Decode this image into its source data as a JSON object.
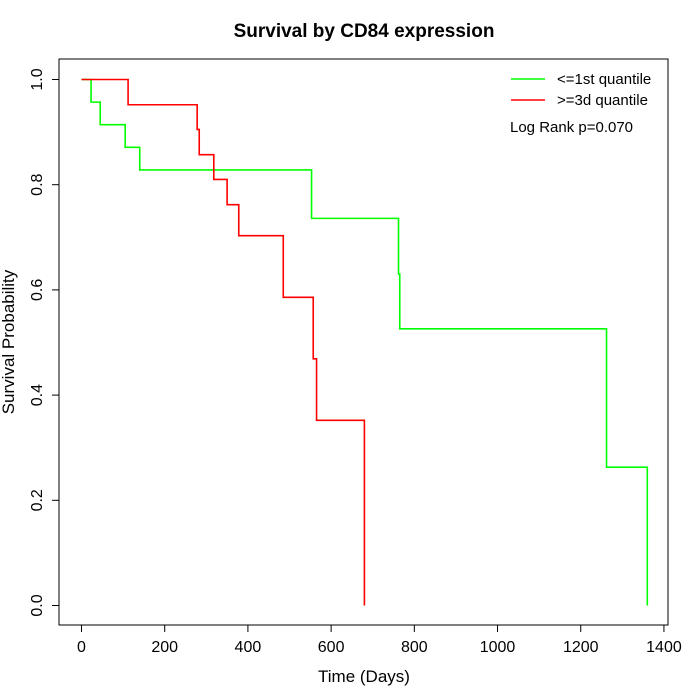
{
  "chart_data": {
    "type": "line",
    "title": "Survival by CD84 expression",
    "xlabel": "Time (Days)",
    "ylabel": "Survival Probability",
    "xlim": [
      0,
      1400
    ],
    "ylim": [
      0,
      1
    ],
    "xticks": [
      0,
      200,
      400,
      600,
      800,
      1000,
      1200,
      1400
    ],
    "yticks": [
      "0.0",
      "0.2",
      "0.4",
      "0.6",
      "0.8",
      "1.0"
    ],
    "grid": false,
    "legend_position": "top-right",
    "annotation": "Log Rank p=0.070",
    "series": [
      {
        "name": "<=1st quantile",
        "color": "#00ff00",
        "steps": [
          [
            0,
            1.0
          ],
          [
            23,
            0.957
          ],
          [
            45,
            0.914
          ],
          [
            105,
            0.871
          ],
          [
            140,
            0.828
          ],
          [
            553,
            0.736
          ],
          [
            762,
            0.63
          ],
          [
            765,
            0.526
          ],
          [
            1262,
            0.263
          ],
          [
            1360,
            0.0
          ]
        ]
      },
      {
        "name": ">=3d quantile",
        "color": "#ff0000",
        "steps": [
          [
            0,
            1.0
          ],
          [
            112,
            0.952
          ],
          [
            278,
            0.905
          ],
          [
            283,
            0.857
          ],
          [
            318,
            0.81
          ],
          [
            350,
            0.762
          ],
          [
            378,
            0.703
          ],
          [
            485,
            0.586
          ],
          [
            557,
            0.469
          ],
          [
            565,
            0.352
          ],
          [
            680,
            0.0
          ]
        ]
      }
    ]
  }
}
